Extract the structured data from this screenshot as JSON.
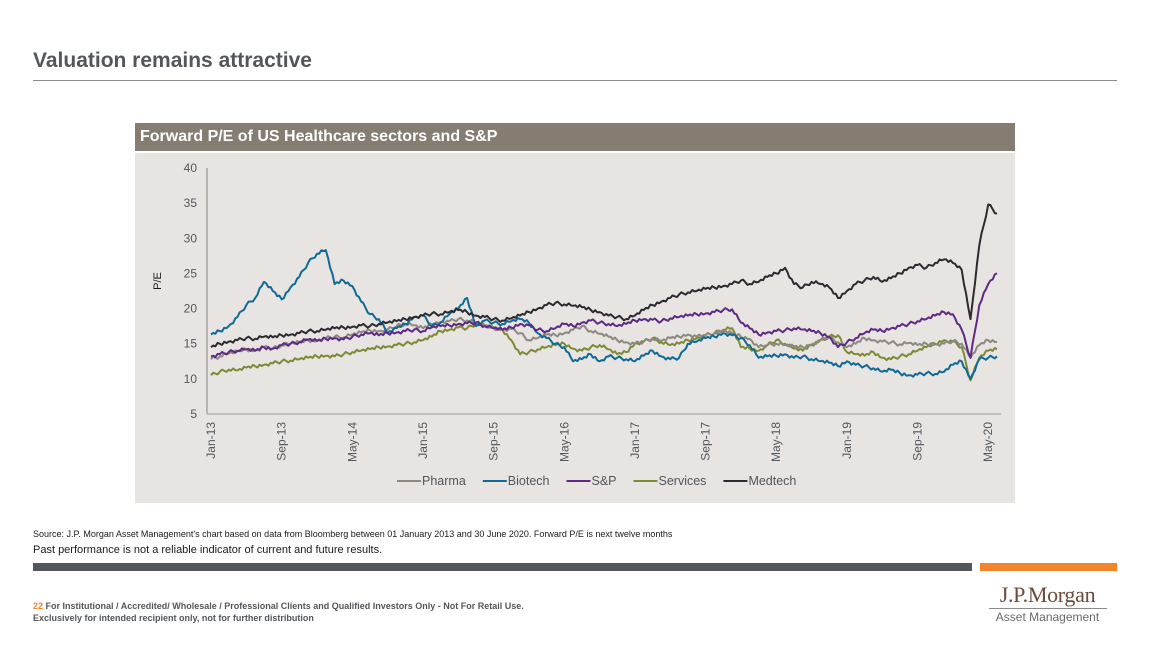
{
  "page": {
    "title": "Valuation remains attractive",
    "source": "Source:  J.P. Morgan Asset Management's chart based on data from Bloomberg between 01 January 2013 and 30 June 2020. Forward P/E is next twelve months",
    "disclaimer": "Past performance is not a reliable indicator of current and future results.",
    "footer_page_number": "22",
    "footer_line1": "For Institutional / Accredited/ Wholesale / Professional Clients and Qualified Investors Only - Not For Retail Use.",
    "footer_line2": "Exclusively for intended recipient only, not for further distribution",
    "logo_main": "J.P.Morgan",
    "logo_sub": "Asset Management",
    "colors": {
      "accent_orange": "#f2852b",
      "header_brown": "#857c72",
      "panel_bg": "#e7e4e1",
      "text_grey": "#53565a"
    }
  },
  "chart_data": {
    "type": "line",
    "title": "Forward P/E of US Healthcare sectors and S&P",
    "xlabel": "",
    "ylabel": "P/E",
    "ylim": [
      5,
      40
    ],
    "yticks": [
      5,
      10,
      15,
      20,
      25,
      30,
      35,
      40
    ],
    "grid": false,
    "legend_position": "bottom-center",
    "x_start": "Jan-13",
    "x_end": "Jun-20",
    "x_frequency": "monthly",
    "xtick_labels": [
      "Jan-13",
      "Sep-13",
      "May-14",
      "Jan-15",
      "Sep-15",
      "May-16",
      "Jan-17",
      "Sep-17",
      "May-18",
      "Jan-19",
      "Sep-19",
      "May-20"
    ],
    "xtick_month_index": [
      0,
      8,
      16,
      24,
      32,
      40,
      48,
      56,
      64,
      72,
      80,
      88
    ],
    "series": [
      {
        "name": "Pharma",
        "color": "#8e8881",
        "values": [
          12.8,
          13.2,
          13.6,
          13.9,
          14.2,
          14.0,
          14.5,
          14.3,
          14.8,
          15.0,
          15.2,
          15.5,
          15.4,
          15.8,
          16.0,
          15.9,
          16.3,
          16.6,
          16.9,
          16.8,
          17.0,
          17.5,
          17.8,
          17.6,
          17.2,
          17.8,
          18.1,
          18.2,
          18.5,
          18.3,
          18.0,
          17.6,
          17.2,
          17.0,
          17.1,
          16.5,
          15.5,
          15.8,
          16.3,
          16.2,
          16.5,
          17.0,
          17.5,
          16.8,
          16.4,
          16.0,
          15.5,
          15.2,
          15.0,
          15.3,
          15.7,
          15.4,
          15.8,
          16.0,
          16.3,
          16.0,
          16.2,
          16.5,
          16.8,
          16.5,
          16.0,
          15.7,
          14.5,
          14.8,
          15.0,
          14.8,
          14.6,
          14.5,
          14.9,
          15.5,
          16.0,
          15.2,
          14.5,
          15.0,
          15.8,
          15.5,
          15.3,
          15.2,
          14.9,
          15.1,
          14.8,
          15.0,
          14.9,
          15.0,
          15.4,
          15.0,
          13.0,
          14.8,
          15.5,
          15.3
        ]
      },
      {
        "name": "Biotech",
        "color": "#0f6a96",
        "values": [
          16.3,
          16.8,
          17.5,
          18.8,
          20.5,
          21.5,
          23.8,
          22.5,
          21.3,
          23.0,
          24.5,
          26.5,
          27.8,
          28.3,
          23.5,
          24.0,
          23.2,
          21.0,
          19.2,
          18.5,
          16.5,
          17.2,
          17.8,
          18.8,
          19.0,
          17.5,
          18.0,
          19.2,
          20.0,
          21.5,
          17.5,
          18.3,
          18.0,
          17.8,
          18.2,
          18.5,
          18.0,
          16.5,
          15.8,
          15.0,
          14.5,
          12.5,
          12.8,
          13.5,
          12.5,
          13.2,
          13.0,
          12.8,
          12.5,
          13.3,
          14.0,
          13.2,
          12.8,
          13.0,
          15.0,
          15.3,
          15.8,
          16.0,
          16.5,
          16.2,
          15.8,
          14.8,
          13.0,
          13.2,
          13.3,
          13.5,
          13.0,
          13.2,
          12.8,
          12.5,
          12.3,
          11.8,
          12.5,
          12.0,
          11.8,
          11.5,
          11.0,
          11.3,
          10.8,
          10.5,
          10.6,
          10.8,
          10.7,
          11.0,
          12.0,
          12.5,
          10.0,
          12.8,
          13.0,
          13.2
        ]
      },
      {
        "name": "S&P",
        "color": "#5e2a84",
        "values": [
          13.2,
          13.5,
          13.8,
          14.0,
          14.2,
          14.0,
          14.5,
          14.3,
          14.8,
          15.0,
          15.2,
          15.6,
          15.4,
          15.7,
          15.8,
          15.6,
          16.0,
          16.3,
          16.5,
          16.2,
          16.5,
          16.6,
          16.8,
          17.0,
          16.8,
          17.3,
          17.5,
          17.6,
          17.8,
          17.9,
          18.0,
          17.5,
          17.2,
          17.0,
          17.3,
          17.8,
          17.6,
          17.0,
          16.8,
          17.2,
          17.8,
          17.5,
          18.0,
          18.3,
          18.0,
          17.8,
          17.5,
          17.8,
          18.3,
          18.5,
          18.4,
          18.2,
          18.6,
          18.8,
          19.0,
          19.2,
          19.3,
          19.5,
          19.8,
          19.9,
          18.0,
          17.2,
          16.3,
          16.6,
          16.8,
          16.9,
          17.2,
          17.0,
          16.8,
          16.5,
          16.0,
          14.5,
          15.2,
          15.8,
          16.5,
          17.0,
          16.8,
          17.2,
          17.5,
          17.8,
          18.2,
          18.5,
          19.0,
          19.5,
          19.2,
          17.0,
          13.0,
          20.5,
          23.5,
          25.0
        ]
      },
      {
        "name": "Services",
        "color": "#7e8a36",
        "values": [
          10.5,
          11.0,
          11.3,
          11.2,
          11.6,
          11.8,
          12.0,
          12.2,
          12.5,
          12.6,
          12.8,
          13.0,
          13.2,
          13.3,
          13.2,
          13.5,
          13.8,
          14.0,
          14.2,
          14.5,
          14.6,
          14.8,
          15.0,
          15.2,
          15.5,
          16.0,
          16.8,
          17.0,
          17.3,
          17.2,
          17.8,
          17.5,
          17.3,
          17.0,
          15.5,
          13.5,
          13.8,
          14.2,
          14.5,
          14.8,
          15.0,
          14.3,
          14.0,
          14.5,
          14.8,
          14.2,
          13.5,
          13.8,
          15.0,
          15.3,
          15.8,
          15.2,
          14.8,
          15.0,
          15.5,
          15.8,
          16.2,
          16.5,
          17.0,
          17.2,
          14.5,
          14.3,
          14.0,
          14.8,
          15.5,
          15.0,
          14.3,
          14.0,
          14.8,
          15.5,
          16.0,
          16.2,
          13.8,
          13.5,
          13.3,
          13.8,
          13.0,
          12.8,
          13.2,
          13.5,
          14.0,
          14.5,
          15.0,
          15.5,
          15.3,
          14.5,
          9.8,
          13.0,
          14.0,
          14.2
        ]
      },
      {
        "name": "Medtech",
        "color": "#2b2b30",
        "values": [
          14.5,
          15.0,
          15.3,
          15.5,
          15.8,
          15.7,
          16.0,
          15.9,
          16.2,
          16.3,
          16.5,
          16.8,
          16.8,
          17.0,
          17.2,
          17.3,
          17.4,
          17.6,
          17.5,
          17.8,
          18.0,
          18.2,
          18.5,
          18.8,
          19.0,
          19.3,
          19.2,
          19.5,
          19.8,
          19.5,
          19.0,
          18.8,
          18.5,
          18.3,
          18.6,
          19.0,
          19.5,
          20.0,
          20.5,
          20.8,
          20.6,
          20.4,
          20.2,
          19.8,
          19.5,
          19.0,
          18.8,
          18.5,
          19.0,
          19.8,
          20.5,
          21.0,
          21.5,
          22.0,
          22.3,
          22.5,
          22.8,
          23.0,
          23.2,
          23.5,
          24.0,
          23.5,
          23.8,
          24.5,
          25.0,
          25.8,
          23.5,
          23.0,
          23.8,
          23.5,
          23.0,
          21.5,
          22.5,
          23.5,
          24.0,
          24.5,
          23.8,
          24.3,
          25.0,
          25.8,
          26.2,
          25.8,
          26.5,
          27.0,
          26.5,
          25.5,
          18.5,
          29.0,
          34.8,
          33.5
        ]
      }
    ]
  }
}
